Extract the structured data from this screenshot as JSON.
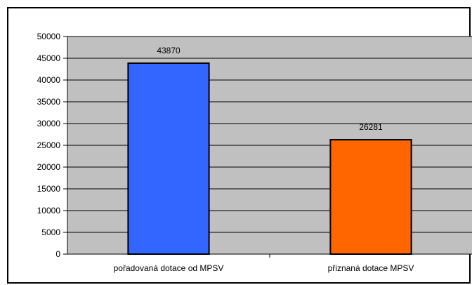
{
  "chart_data": {
    "type": "bar",
    "categories": [
      "pořadovaná dotace od MPSV",
      "přiznaná dotace MPSV"
    ],
    "values": [
      43870,
      26281
    ],
    "value_labels": [
      "43870",
      "26281"
    ],
    "bar_colors": [
      "#3366FF",
      "#FF6600"
    ],
    "plot_background": "#C0C0C0",
    "ylim": [
      0,
      50000
    ],
    "yticks": [
      0,
      5000,
      10000,
      15000,
      20000,
      25000,
      30000,
      35000,
      40000,
      45000,
      50000
    ],
    "ytick_labels": [
      "0",
      "5000",
      "10000",
      "15000",
      "20000",
      "25000",
      "30000",
      "35000",
      "40000",
      "45000",
      "50000"
    ],
    "grid": true,
    "legend": false
  }
}
